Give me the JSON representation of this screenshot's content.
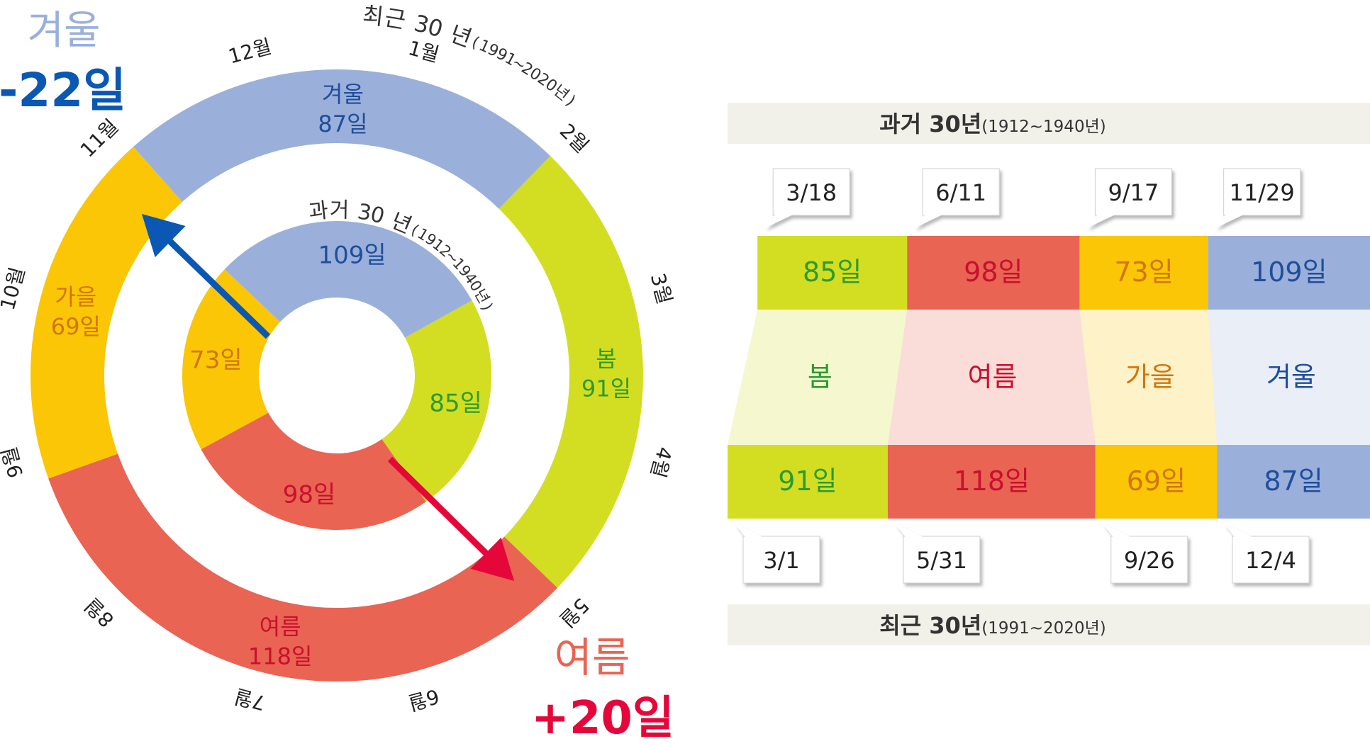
{
  "colors": {
    "spring": "#d3de22",
    "summer": "#e96453",
    "autumn": "#fac605",
    "winter": "#9ab0db",
    "spring_text": "#2d9b2d",
    "summer_text": "#c8102e",
    "autumn_text": "#d2750c",
    "winter_text": "#1f4e9a",
    "winter_arrow": "#0a58b4",
    "summer_arrow": "#e5073a",
    "band_bg": "#f1f1ea"
  },
  "callouts": {
    "winter": {
      "label": "겨울",
      "delta": "-22일"
    },
    "summer": {
      "label": "여름",
      "delta": "+20일"
    }
  },
  "chart_data": [
    {
      "type": "pie",
      "variant": "concentric-donut",
      "months": [
        "1월",
        "2월",
        "3월",
        "4월",
        "5월",
        "6월",
        "7월",
        "8월",
        "9월",
        "10월",
        "11월",
        "12월"
      ],
      "rings": [
        {
          "name": "과거 30 년",
          "period": "(1912~1940년)",
          "segments": [
            {
              "season": "봄",
              "days": 85,
              "label": "85일",
              "key": "spring"
            },
            {
              "season": "여름",
              "days": 98,
              "label": "98일",
              "key": "summer"
            },
            {
              "season": "가을",
              "days": 73,
              "label": "73일",
              "key": "autumn"
            },
            {
              "season": "겨울",
              "days": 109,
              "label": "109일",
              "key": "winter"
            }
          ]
        },
        {
          "name": "최근 30 년",
          "period": "(1991~2020년)",
          "segments": [
            {
              "season": "봄",
              "days": 91,
              "label": "91일",
              "key": "spring"
            },
            {
              "season": "여름",
              "days": 118,
              "label": "118일",
              "key": "summer"
            },
            {
              "season": "가을",
              "days": 69,
              "label": "69일",
              "key": "autumn"
            },
            {
              "season": "겨울",
              "days": 87,
              "label": "87일",
              "key": "winter"
            }
          ]
        }
      ]
    },
    {
      "type": "bar",
      "variant": "stacked-timeline",
      "past": {
        "title": "과거 30년",
        "period": "(1912~1940년)",
        "start_dates": [
          "3/18",
          "6/11",
          "9/17",
          "11/29"
        ],
        "days": [
          85,
          98,
          73,
          109
        ],
        "labels": [
          "85일",
          "98일",
          "73일",
          "109일"
        ]
      },
      "recent": {
        "title": "최근 30년",
        "period": "(1991~2020년)",
        "start_dates": [
          "3/1",
          "5/31",
          "9/26",
          "12/4"
        ],
        "days": [
          91,
          118,
          69,
          87
        ],
        "labels": [
          "91일",
          "118일",
          "69일",
          "87일"
        ]
      },
      "seasons": [
        "봄",
        "여름",
        "가을",
        "겨울"
      ],
      "keys": [
        "spring",
        "summer",
        "autumn",
        "winter"
      ]
    }
  ]
}
